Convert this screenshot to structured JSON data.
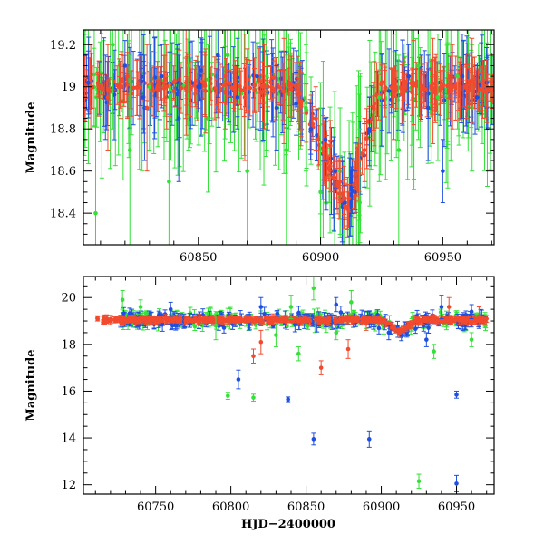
{
  "figure": "two-panel light curve",
  "chart_data": [
    {
      "type": "scatter",
      "panel": "top",
      "title": "",
      "xlabel": "",
      "ylabel": "Magnitude",
      "xlim": [
        60803,
        60971
      ],
      "ylim": [
        19.27,
        18.25
      ],
      "y_inverted": true,
      "x_ticks": [
        60850,
        60900,
        60950
      ],
      "x_tick_labels": [
        "60850",
        "60900",
        "60950"
      ],
      "y_ticks": [
        18.4,
        18.6,
        18.8,
        19.0,
        19.2
      ],
      "y_tick_labels": [
        "18.4",
        "18.6",
        "18.8",
        "19",
        "19.2"
      ],
      "error_bars": true,
      "series": [
        {
          "name": "blue",
          "color": "#1f4fe0",
          "points": [
            [
              60805,
              19.02,
              0.15
            ],
            [
              60812,
              18.95,
              0.2
            ],
            [
              60820,
              19.1,
              0.12
            ],
            [
              60828,
              18.9,
              0.25
            ],
            [
              60835,
              19.05,
              0.15
            ],
            [
              60842,
              18.85,
              0.3
            ],
            [
              60850,
              19.0,
              0.12
            ],
            [
              60858,
              19.15,
              0.2
            ],
            [
              60866,
              18.95,
              0.15
            ],
            [
              60874,
              19.05,
              0.25
            ],
            [
              60882,
              18.9,
              0.2
            ],
            [
              60890,
              18.92,
              0.15
            ],
            [
              60896,
              18.8,
              0.12
            ],
            [
              60902,
              18.75,
              0.1
            ],
            [
              60906,
              18.6,
              0.08
            ],
            [
              60910,
              18.45,
              0.08
            ],
            [
              60914,
              18.5,
              0.1
            ],
            [
              60920,
              18.8,
              0.15
            ],
            [
              60928,
              18.98,
              0.2
            ],
            [
              60936,
              19.05,
              0.15
            ],
            [
              60944,
              18.9,
              0.25
            ],
            [
              60950,
              18.6,
              0.15
            ],
            [
              60958,
              19.05,
              0.2
            ],
            [
              60964,
              18.95,
              0.15
            ],
            [
              60968,
              19.02,
              0.12
            ]
          ]
        },
        {
          "name": "green",
          "color": "#35e03a",
          "points": [
            [
              60808,
              18.4,
              0.5
            ],
            [
              60815,
              19.2,
              0.4
            ],
            [
              60822,
              18.7,
              0.45
            ],
            [
              60830,
              19.0,
              0.3
            ],
            [
              60838,
              18.55,
              0.5
            ],
            [
              60846,
              19.1,
              0.4
            ],
            [
              60854,
              18.85,
              0.35
            ],
            [
              60862,
              19.15,
              0.3
            ],
            [
              60870,
              18.6,
              0.5
            ],
            [
              60878,
              19.05,
              0.35
            ],
            [
              60886,
              18.7,
              0.45
            ],
            [
              60894,
              18.9,
              0.3
            ],
            [
              60900,
              18.5,
              0.4
            ],
            [
              60908,
              18.6,
              0.3
            ],
            [
              60916,
              18.45,
              0.35
            ],
            [
              60924,
              18.95,
              0.4
            ],
            [
              60932,
              18.7,
              0.45
            ],
            [
              60940,
              19.1,
              0.35
            ],
            [
              60948,
              18.95,
              0.3
            ],
            [
              60956,
              19.05,
              0.25
            ],
            [
              60962,
              18.9,
              0.3
            ]
          ]
        },
        {
          "name": "red",
          "color": "#f24a2e",
          "points": [
            [
              60806,
              19.0,
              0.2
            ],
            [
              60813,
              18.95,
              0.25
            ],
            [
              60821,
              19.05,
              0.2
            ],
            [
              60829,
              18.9,
              0.3
            ],
            [
              60837,
              19.0,
              0.2
            ],
            [
              60845,
              19.02,
              0.25
            ],
            [
              60853,
              18.98,
              0.2
            ],
            [
              60861,
              19.05,
              0.25
            ],
            [
              60869,
              18.95,
              0.3
            ],
            [
              60877,
              19.0,
              0.2
            ],
            [
              60885,
              18.98,
              0.25
            ],
            [
              60892,
              18.92,
              0.2
            ],
            [
              60898,
              18.85,
              0.15
            ],
            [
              60904,
              18.72,
              0.12
            ],
            [
              60908,
              18.55,
              0.1
            ],
            [
              60911,
              18.42,
              0.08
            ],
            [
              60914,
              18.48,
              0.1
            ],
            [
              60918,
              18.7,
              0.15
            ],
            [
              60922,
              18.92,
              0.2
            ],
            [
              60930,
              19.0,
              0.25
            ],
            [
              60938,
              19.02,
              0.2
            ],
            [
              60946,
              18.98,
              0.25
            ],
            [
              60954,
              19.0,
              0.2
            ],
            [
              60962,
              19.03,
              0.2
            ],
            [
              60968,
              18.98,
              0.15
            ]
          ]
        }
      ]
    },
    {
      "type": "scatter",
      "panel": "bottom",
      "title": "",
      "xlabel": "HJD−2400000",
      "ylabel": "Magnitude",
      "xlim": [
        60702,
        60975
      ],
      "ylim": [
        20.9,
        11.6
      ],
      "y_inverted": true,
      "x_ticks": [
        60750,
        60800,
        60850,
        60900,
        60950
      ],
      "x_tick_labels": [
        "60750",
        "60800",
        "60850",
        "60900",
        "60950"
      ],
      "y_ticks": [
        12,
        14,
        16,
        18,
        20
      ],
      "y_tick_labels": [
        "12",
        "14",
        "16",
        "18",
        "20"
      ],
      "error_bars": true,
      "series": [
        {
          "name": "blue",
          "color": "#1f4fe0",
          "points": [
            [
              60805,
              16.5,
              0.4
            ],
            [
              60838,
              15.65,
              0.1
            ],
            [
              60855,
              13.95,
              0.25
            ],
            [
              60892,
              13.95,
              0.35
            ],
            [
              60950,
              12.05,
              0.35
            ],
            [
              60950,
              15.85,
              0.15
            ],
            [
              60760,
              19.5,
              0.3
            ],
            [
              60820,
              19.6,
              0.4
            ],
            [
              60870,
              19.7,
              0.3
            ],
            [
              60905,
              18.5,
              0.3
            ],
            [
              60930,
              18.2,
              0.3
            ],
            [
              60940,
              19.6,
              0.5
            ],
            [
              60960,
              19.4,
              0.3
            ]
          ]
        },
        {
          "name": "green",
          "color": "#35e03a",
          "points": [
            [
              60728,
              19.9,
              0.4
            ],
            [
              60740,
              19.6,
              0.3
            ],
            [
              60798,
              15.8,
              0.15
            ],
            [
              60815,
              15.72,
              0.15
            ],
            [
              60840,
              19.6,
              0.5
            ],
            [
              60845,
              17.6,
              0.3
            ],
            [
              60855,
              20.4,
              0.5
            ],
            [
              60870,
              18.5,
              0.3
            ],
            [
              60880,
              19.8,
              0.5
            ],
            [
              60925,
              12.15,
              0.3
            ],
            [
              60935,
              17.7,
              0.3
            ],
            [
              60960,
              18.2,
              0.3
            ],
            [
              60790,
              18.8,
              0.6
            ],
            [
              60830,
              18.4,
              0.5
            ]
          ]
        },
        {
          "name": "red",
          "color": "#f24a2e",
          "points": [
            [
              60815,
              17.5,
              0.3
            ],
            [
              60820,
              18.1,
              0.5
            ],
            [
              60860,
              17.0,
              0.3
            ],
            [
              60878,
              17.8,
              0.4
            ],
            [
              60890,
              18.9,
              0.3
            ],
            [
              60912,
              18.5,
              0.2
            ],
            [
              60945,
              19.6,
              0.4
            ],
            [
              60965,
              19.2,
              0.4
            ]
          ]
        }
      ],
      "baseline": {
        "x_range": [
          60710,
          60970
        ],
        "mag": 19.05,
        "scatter": 0.25,
        "dip_x": 60912,
        "dip_mag": 18.55
      }
    }
  ]
}
